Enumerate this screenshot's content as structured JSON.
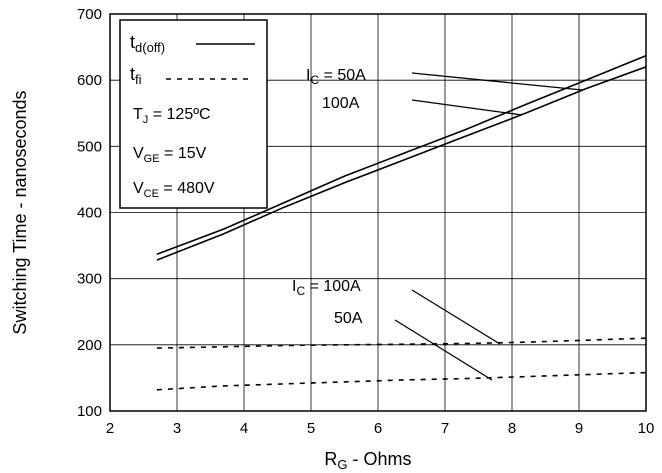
{
  "chart_data": {
    "type": "line",
    "xlabel": {
      "main": "R",
      "sub": "G",
      "rest": " - Ohms"
    },
    "ylabel": "Switching Time - nanoseconds",
    "xlim": [
      2,
      10
    ],
    "ylim": [
      100,
      700
    ],
    "x_ticks": [
      2,
      3,
      4,
      5,
      6,
      7,
      8,
      9,
      10
    ],
    "y_ticks": [
      100,
      200,
      300,
      400,
      500,
      600,
      700
    ],
    "grid": true,
    "legend_position": "top-left",
    "legend": [
      {
        "symbol": "t",
        "sub": "d(off)",
        "style": "solid"
      },
      {
        "symbol": "t",
        "sub": "fi",
        "style": "dashed"
      }
    ],
    "conditions": [
      {
        "main": "T",
        "sub": "J",
        "rest": " = 125ºC"
      },
      {
        "main": "V",
        "sub": "GE",
        "rest": " = 15V"
      },
      {
        "main": "V",
        "sub": "CE",
        "rest": " = 480V"
      }
    ],
    "series": [
      {
        "style": "solid",
        "x": [
          2.7,
          3.7,
          4.6,
          5.5,
          6.4,
          7.3,
          8.2,
          9.1,
          10
        ],
        "y": [
          337,
          375,
          415,
          455,
          490,
          525,
          563,
          600,
          637
        ]
      },
      {
        "style": "solid",
        "x": [
          2.7,
          3.7,
          4.6,
          5.5,
          6.4,
          7.3,
          8.2,
          9.1,
          10
        ],
        "y": [
          328,
          368,
          408,
          445,
          480,
          515,
          550,
          587,
          620
        ]
      },
      {
        "style": "dashed",
        "x": [
          2.7,
          3.7,
          4.6,
          5.5,
          6.4,
          7.3,
          8.2,
          9.1,
          10
        ],
        "y": [
          195,
          197,
          199,
          200,
          201,
          202,
          204,
          207,
          210
        ]
      },
      {
        "style": "dashed",
        "x": [
          2.7,
          3.7,
          4.6,
          5.5,
          6.4,
          7.3,
          8.2,
          9.1,
          10
        ],
        "y": [
          132,
          138,
          141,
          144,
          147,
          149,
          152,
          155,
          158
        ]
      }
    ],
    "annotations": [
      {
        "main": "I",
        "sub": "C",
        "rest": " = 50A"
      },
      {
        "main": "",
        "sub": "",
        "rest": "100A"
      },
      {
        "main": "I",
        "sub": "C",
        "rest": " = 100A"
      },
      {
        "main": "",
        "sub": "",
        "rest": "50A"
      }
    ]
  }
}
